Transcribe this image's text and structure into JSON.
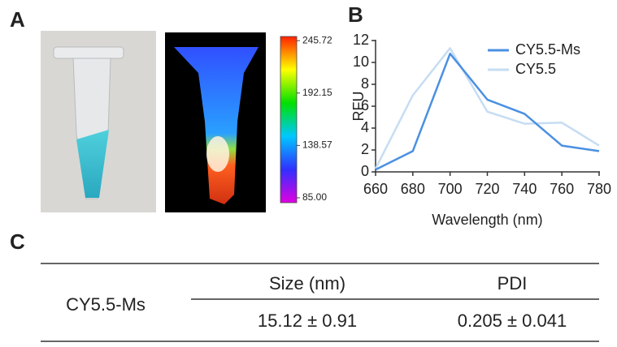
{
  "panel_labels": [
    "A",
    "B",
    "C"
  ],
  "colorbar": {
    "lim": [
      80,
      250
    ],
    "ticks": [
      245.72,
      192.15,
      138.57,
      {
        "value": 85,
        "label": "85.00"
      }
    ]
  },
  "chart_data": {
    "type": "line",
    "xlabel": "Wavelength (nm)",
    "ylabel": "RFU",
    "x": [
      660,
      680,
      700,
      720,
      740,
      760,
      780
    ],
    "series": [
      {
        "name": "CY5.5-Ms",
        "color": "#4a90e2",
        "values": [
          0.2,
          1.9,
          10.8,
          6.6,
          5.3,
          2.4,
          1.9
        ]
      },
      {
        "name": "CY5.5",
        "color": "#c6ddf3",
        "values": [
          0.3,
          7.0,
          11.3,
          5.5,
          4.4,
          4.5,
          2.4
        ]
      }
    ],
    "xlim": [
      660,
      780
    ],
    "xticks": [
      660,
      680,
      700,
      720,
      740,
      760,
      780
    ],
    "ylim": [
      0,
      12
    ],
    "yticks": [
      0,
      2,
      4,
      6,
      8,
      10,
      12
    ],
    "legend": "upper right",
    "grid": false
  },
  "table": {
    "row_label": "CY5.5-Ms",
    "headers": [
      "Size (nm)",
      "PDI"
    ],
    "values": [
      "15.12 ± 0.91",
      "0.205 ± 0.041"
    ]
  }
}
